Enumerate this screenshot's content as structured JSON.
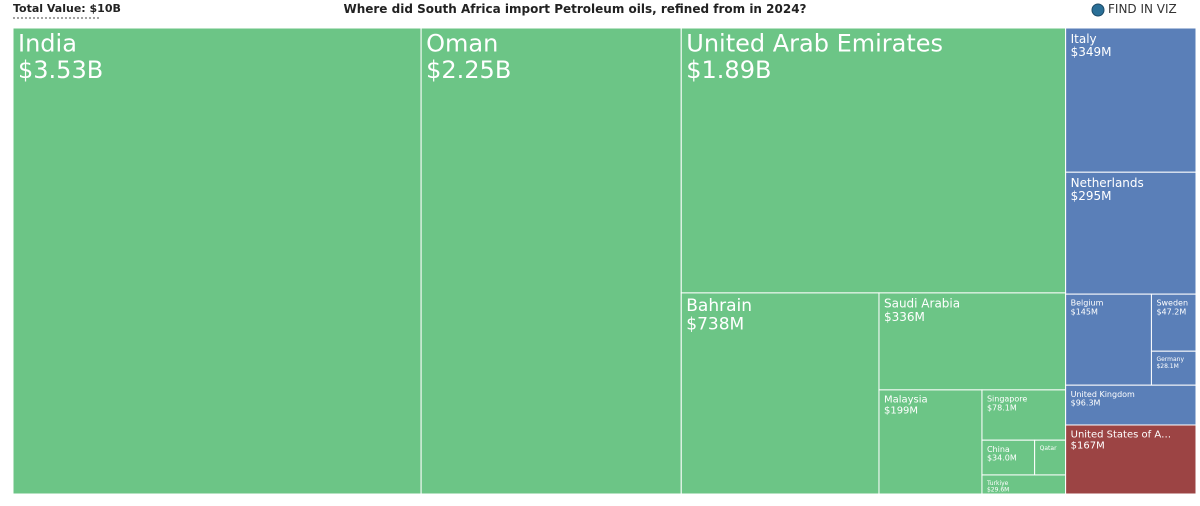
{
  "total_value": "Total Value: $10B",
  "find_button": "FIND IN VIZ",
  "chart_data": {
    "type": "treemap",
    "title": "Where did South Africa import Petroleum oils, refined from in 2024?",
    "categories": [
      "India",
      "Oman",
      "United Arab Emirates",
      "Bahrain",
      "Saudi Arabia",
      "Malaysia",
      "Singapore",
      "China",
      "Qatar",
      "Turkiye",
      "Italy",
      "Netherlands",
      "Belgium",
      "Sweden",
      "Germany",
      "United Kingdom",
      "United States of A…"
    ],
    "values": [
      3530000000,
      2250000000,
      1890000000,
      738000000,
      336000000,
      199000000,
      78100000,
      34000000,
      20000000,
      29600000,
      349000000,
      295000000,
      145000000,
      47200000,
      28100000,
      96300000,
      167000000
    ],
    "value_labels": [
      "$3.53B",
      "$2.25B",
      "$1.89B",
      "$738M",
      "$336M",
      "$199M",
      "$78.1M",
      "$34.0M",
      null,
      "$29.6M",
      "$349M",
      "$295M",
      "$145M",
      "$47.2M",
      "$28.1M",
      "$96.3M",
      "$167M"
    ],
    "colors": [
      "#6cc586",
      "#6cc586",
      "#6cc586",
      "#6cc586",
      "#6cc586",
      "#6cc586",
      "#6cc586",
      "#6cc586",
      "#6cc586",
      "#6cc586",
      "#5a7fb8",
      "#5a7fb8",
      "#5a7fb8",
      "#5a7fb8",
      "#5a7fb8",
      "#5a7fb8",
      "#9c4444"
    ]
  }
}
